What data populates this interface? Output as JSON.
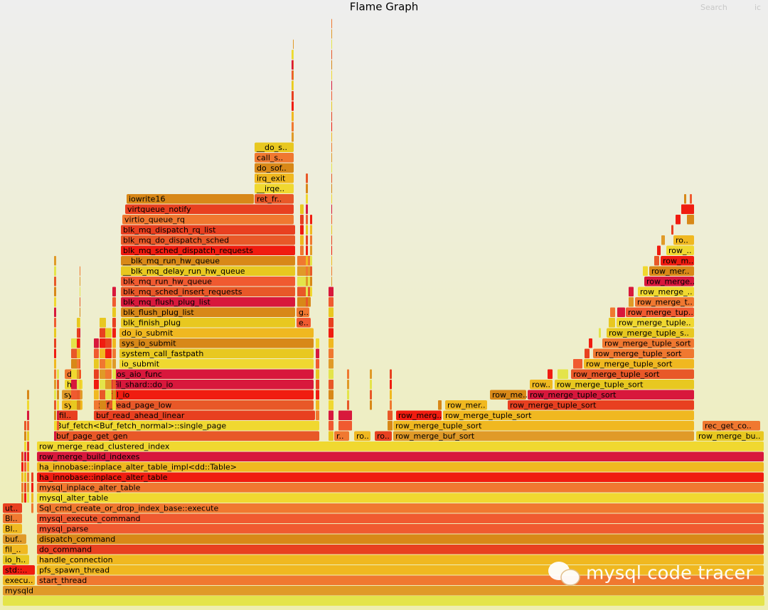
{
  "title": "Flame Graph",
  "search": "Search",
  "ic": "ic",
  "watermark": "mysql code tracer",
  "frames": [
    "mysqld",
    "execu..",
    "start_thread",
    "std::..",
    "pfs_spawn_thread",
    "io_h..",
    "handle_connection",
    "fil_..",
    "do_command",
    "buf..",
    "dispatch_command",
    "Bl..",
    "mysql_parse",
    "Bl..",
    "mysql_execute_command",
    "ut..",
    "Sql_cmd_create_or_drop_index_base::execute",
    "mysql_alter_table",
    "mysql_inplace_alter_table",
    "ha_innobase::inplace_alter_table",
    "ha_innobase::inplace_alter_table_impl<dd::Table>",
    "row_merge_build_indexes",
    "row_merge_read_clustered_index",
    "buf_page_get_gen",
    "r..",
    "ro..",
    "ro..",
    "row_merge_buf_sort",
    "row_merge_bu..",
    "Buf_fetch<Buf_fetch_normal>::single_page",
    "row_merge_tuple_sort",
    "rec_get_co..",
    "fil..",
    "buf_read_ahead_linear",
    "row_merg..",
    "row_merge_tuple_sort",
    "sy..",
    "buf_read_page_low",
    "row_mer..",
    "row_merge_tuple_sort",
    "sy..",
    "fil_io",
    "row_me..",
    "row_merge_tuple_sort",
    "h..",
    "Fil_shard::do_io",
    "row..",
    "row_merge_tuple_sort",
    "d..",
    "os_aio_func",
    "row_merge_tuple_sort",
    "io_submit",
    "row_merge_tuple_sort",
    "system_call_fastpath",
    "row_merge_tuple_sort",
    "sys_io_submit",
    "row_merge_tuple_sort",
    "do_io_submit",
    "row_merge_tuple_s..",
    "blk_finish_plug",
    "e..",
    "row_merge_tuple..",
    "blk_flush_plug_list",
    "g..",
    "row_merge_tup..",
    "blk_mq_flush_plug_list",
    "row_merge_t..",
    "blk_mq_sched_insert_requests",
    "row_merge_..",
    "blk_mq_run_hw_queue",
    "row_merge..",
    "__blk_mq_delay_run_hw_queue",
    "row_mer..",
    "__blk_mq_run_hw_queue",
    "row_m..",
    "blk_mq_sched_dispatch_requests",
    "row_..",
    "blk_mq_do_dispatch_sched",
    "ro..",
    "blk_mq_dispatch_rq_list",
    "virtio_queue_rq",
    "virtqueue_notify",
    "iowrite16",
    "ret_fr..",
    "__irqe..",
    "irq_exit",
    "do_sof..",
    "call_s..",
    "__do_s.."
  ]
}
